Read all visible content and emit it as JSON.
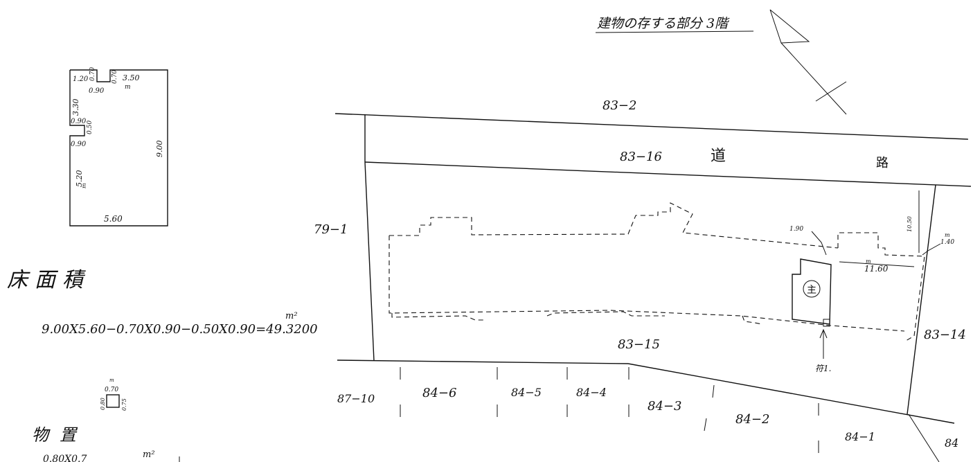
{
  "title": "建物の存する部分 3階",
  "floor_plan": {
    "dims": [
      "1.20",
      "0.70",
      "0.70",
      "3.50",
      "m",
      "0.90",
      "3.30",
      "0.90",
      "0.50",
      "0.90",
      "9.00",
      "5.20",
      "m",
      "5.60"
    ]
  },
  "area_section": {
    "heading": "床面積",
    "formula": "9.00X5.60−0.70X0.90−0.50X0.90=49.3200",
    "unit": "m²"
  },
  "storage": {
    "dims": [
      "m",
      "0.70",
      "0.80",
      "0.75"
    ],
    "heading": "物置",
    "formula_partial": "0.80X0.7",
    "unit": "m²"
  },
  "site_plan": {
    "lots": [
      "83−2",
      "83−16",
      "79−1",
      "83−15",
      "83−14",
      "87−10",
      "84−6",
      "84−5",
      "84−4",
      "84−3",
      "84−2",
      "84−1",
      "84"
    ],
    "road_chars": [
      "道",
      "路"
    ],
    "building_mark": "主",
    "reference_label": "符1.",
    "dim_1_90": "1.90",
    "dim_1_050": "10.50",
    "dim_11_60": "11.60",
    "dim_1_40": "1.40",
    "unit_m": "m"
  }
}
